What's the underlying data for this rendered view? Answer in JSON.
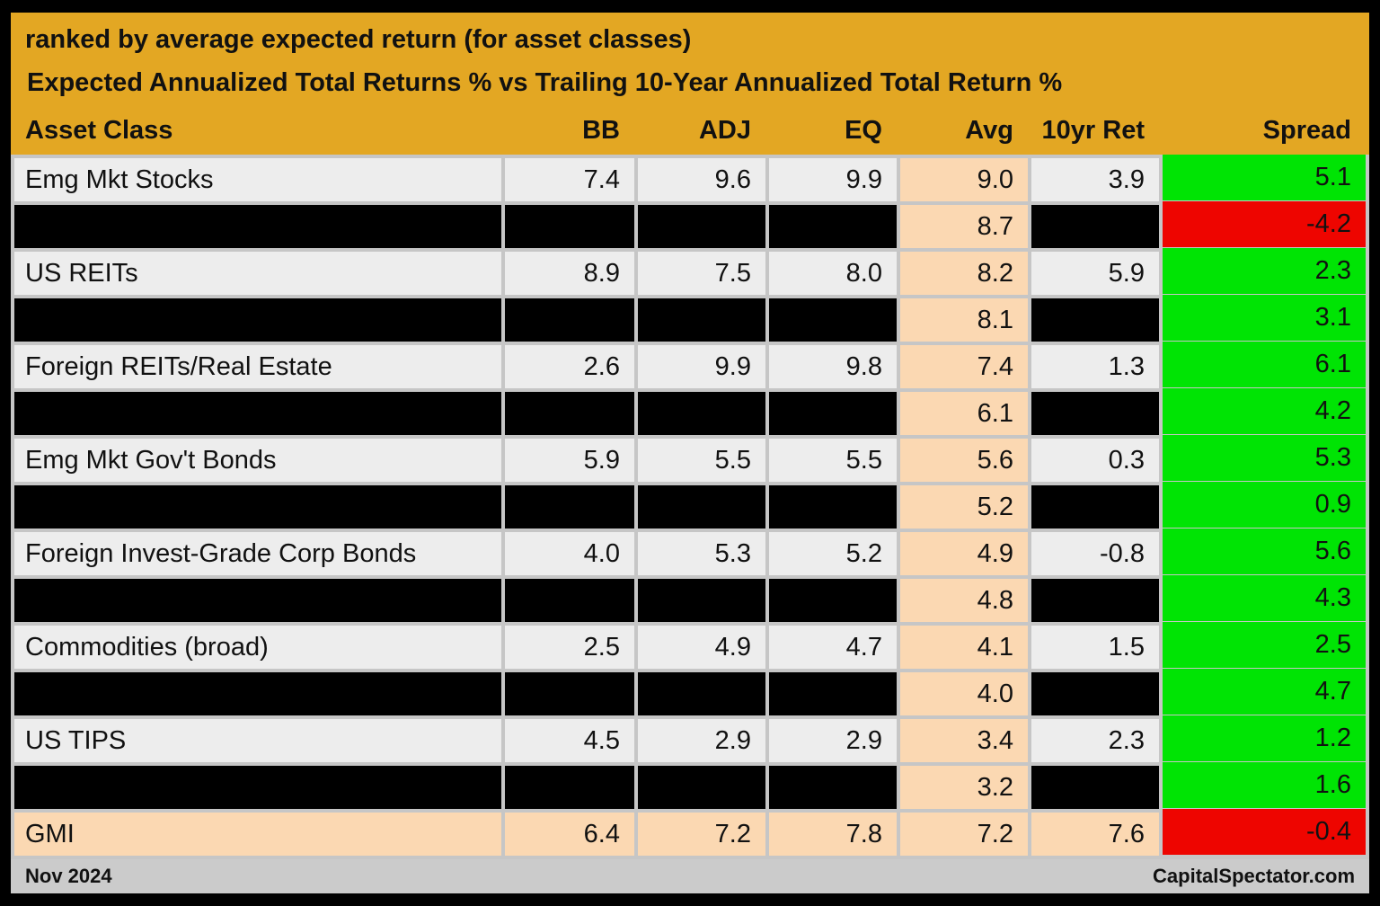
{
  "header": {
    "title_line1": "ranked by average expected return (for asset classes)",
    "title_line2": "Expected Annualized Total Returns % vs Trailing 10-Year Annualized Total Return %"
  },
  "footer": {
    "date": "Nov 2024",
    "source": "CapitalSpectator.com"
  },
  "colors": {
    "header_gold": "#E3A723",
    "avg_column_peach": "#FBD8B2",
    "positive_spread_green": "#00E404",
    "negative_spread_red": "#EE0500",
    "row_light_gray": "#EDEDED",
    "redacted_black": "#000000",
    "grid_gray": "#C6C6C6",
    "footer_gray": "#CBCBCB"
  },
  "chart_data": {
    "type": "table",
    "title": "Expected Annualized Total Returns % vs Trailing 10-Year Annualized Total Return %",
    "subtitle": "ranked by average expected return (for asset classes)",
    "columns": [
      "Asset Class",
      "BB",
      "ADJ",
      "EQ",
      "Avg",
      "10yr Ret",
      "Spread"
    ],
    "rows": [
      {
        "kind": "data",
        "spread_color": "green",
        "values": [
          "Emg Mkt Stocks",
          "7.4",
          "9.6",
          "9.9",
          "9.0",
          "3.9",
          "5.1"
        ]
      },
      {
        "kind": "redacted",
        "spread_color": "red",
        "values": [
          null,
          null,
          null,
          null,
          "8.7",
          null,
          "-4.2"
        ]
      },
      {
        "kind": "data",
        "spread_color": "green",
        "values": [
          "US REITs",
          "8.9",
          "7.5",
          "8.0",
          "8.2",
          "5.9",
          "2.3"
        ]
      },
      {
        "kind": "redacted",
        "spread_color": "green",
        "values": [
          null,
          null,
          null,
          null,
          "8.1",
          null,
          "3.1"
        ]
      },
      {
        "kind": "data",
        "spread_color": "green",
        "values": [
          "Foreign REITs/Real Estate",
          "2.6",
          "9.9",
          "9.8",
          "7.4",
          "1.3",
          "6.1"
        ]
      },
      {
        "kind": "redacted",
        "spread_color": "green",
        "values": [
          null,
          null,
          null,
          null,
          "6.1",
          null,
          "4.2"
        ]
      },
      {
        "kind": "data",
        "spread_color": "green",
        "values": [
          "Emg Mkt Gov't Bonds",
          "5.9",
          "5.5",
          "5.5",
          "5.6",
          "0.3",
          "5.3"
        ]
      },
      {
        "kind": "redacted",
        "spread_color": "green",
        "values": [
          null,
          null,
          null,
          null,
          "5.2",
          null,
          "0.9"
        ]
      },
      {
        "kind": "data",
        "spread_color": "green",
        "values": [
          "Foreign Invest-Grade Corp Bonds",
          "4.0",
          "5.3",
          "5.2",
          "4.9",
          "-0.8",
          "5.6"
        ]
      },
      {
        "kind": "redacted",
        "spread_color": "green",
        "values": [
          null,
          null,
          null,
          null,
          "4.8",
          null,
          "4.3"
        ]
      },
      {
        "kind": "data",
        "spread_color": "green",
        "values": [
          "Commodities (broad)",
          "2.5",
          "4.9",
          "4.7",
          "4.1",
          "1.5",
          "2.5"
        ]
      },
      {
        "kind": "redacted",
        "spread_color": "green",
        "values": [
          null,
          null,
          null,
          null,
          "4.0",
          null,
          "4.7"
        ]
      },
      {
        "kind": "data",
        "spread_color": "green",
        "values": [
          "US TIPS",
          "4.5",
          "2.9",
          "2.9",
          "3.4",
          "2.3",
          "1.2"
        ]
      },
      {
        "kind": "redacted",
        "spread_color": "green",
        "values": [
          null,
          null,
          null,
          null,
          "3.2",
          null,
          "1.6"
        ]
      },
      {
        "kind": "summary",
        "spread_color": "red",
        "values": [
          "GMI",
          "6.4",
          "7.2",
          "7.8",
          "7.2",
          "7.6",
          "-0.4"
        ]
      }
    ]
  }
}
